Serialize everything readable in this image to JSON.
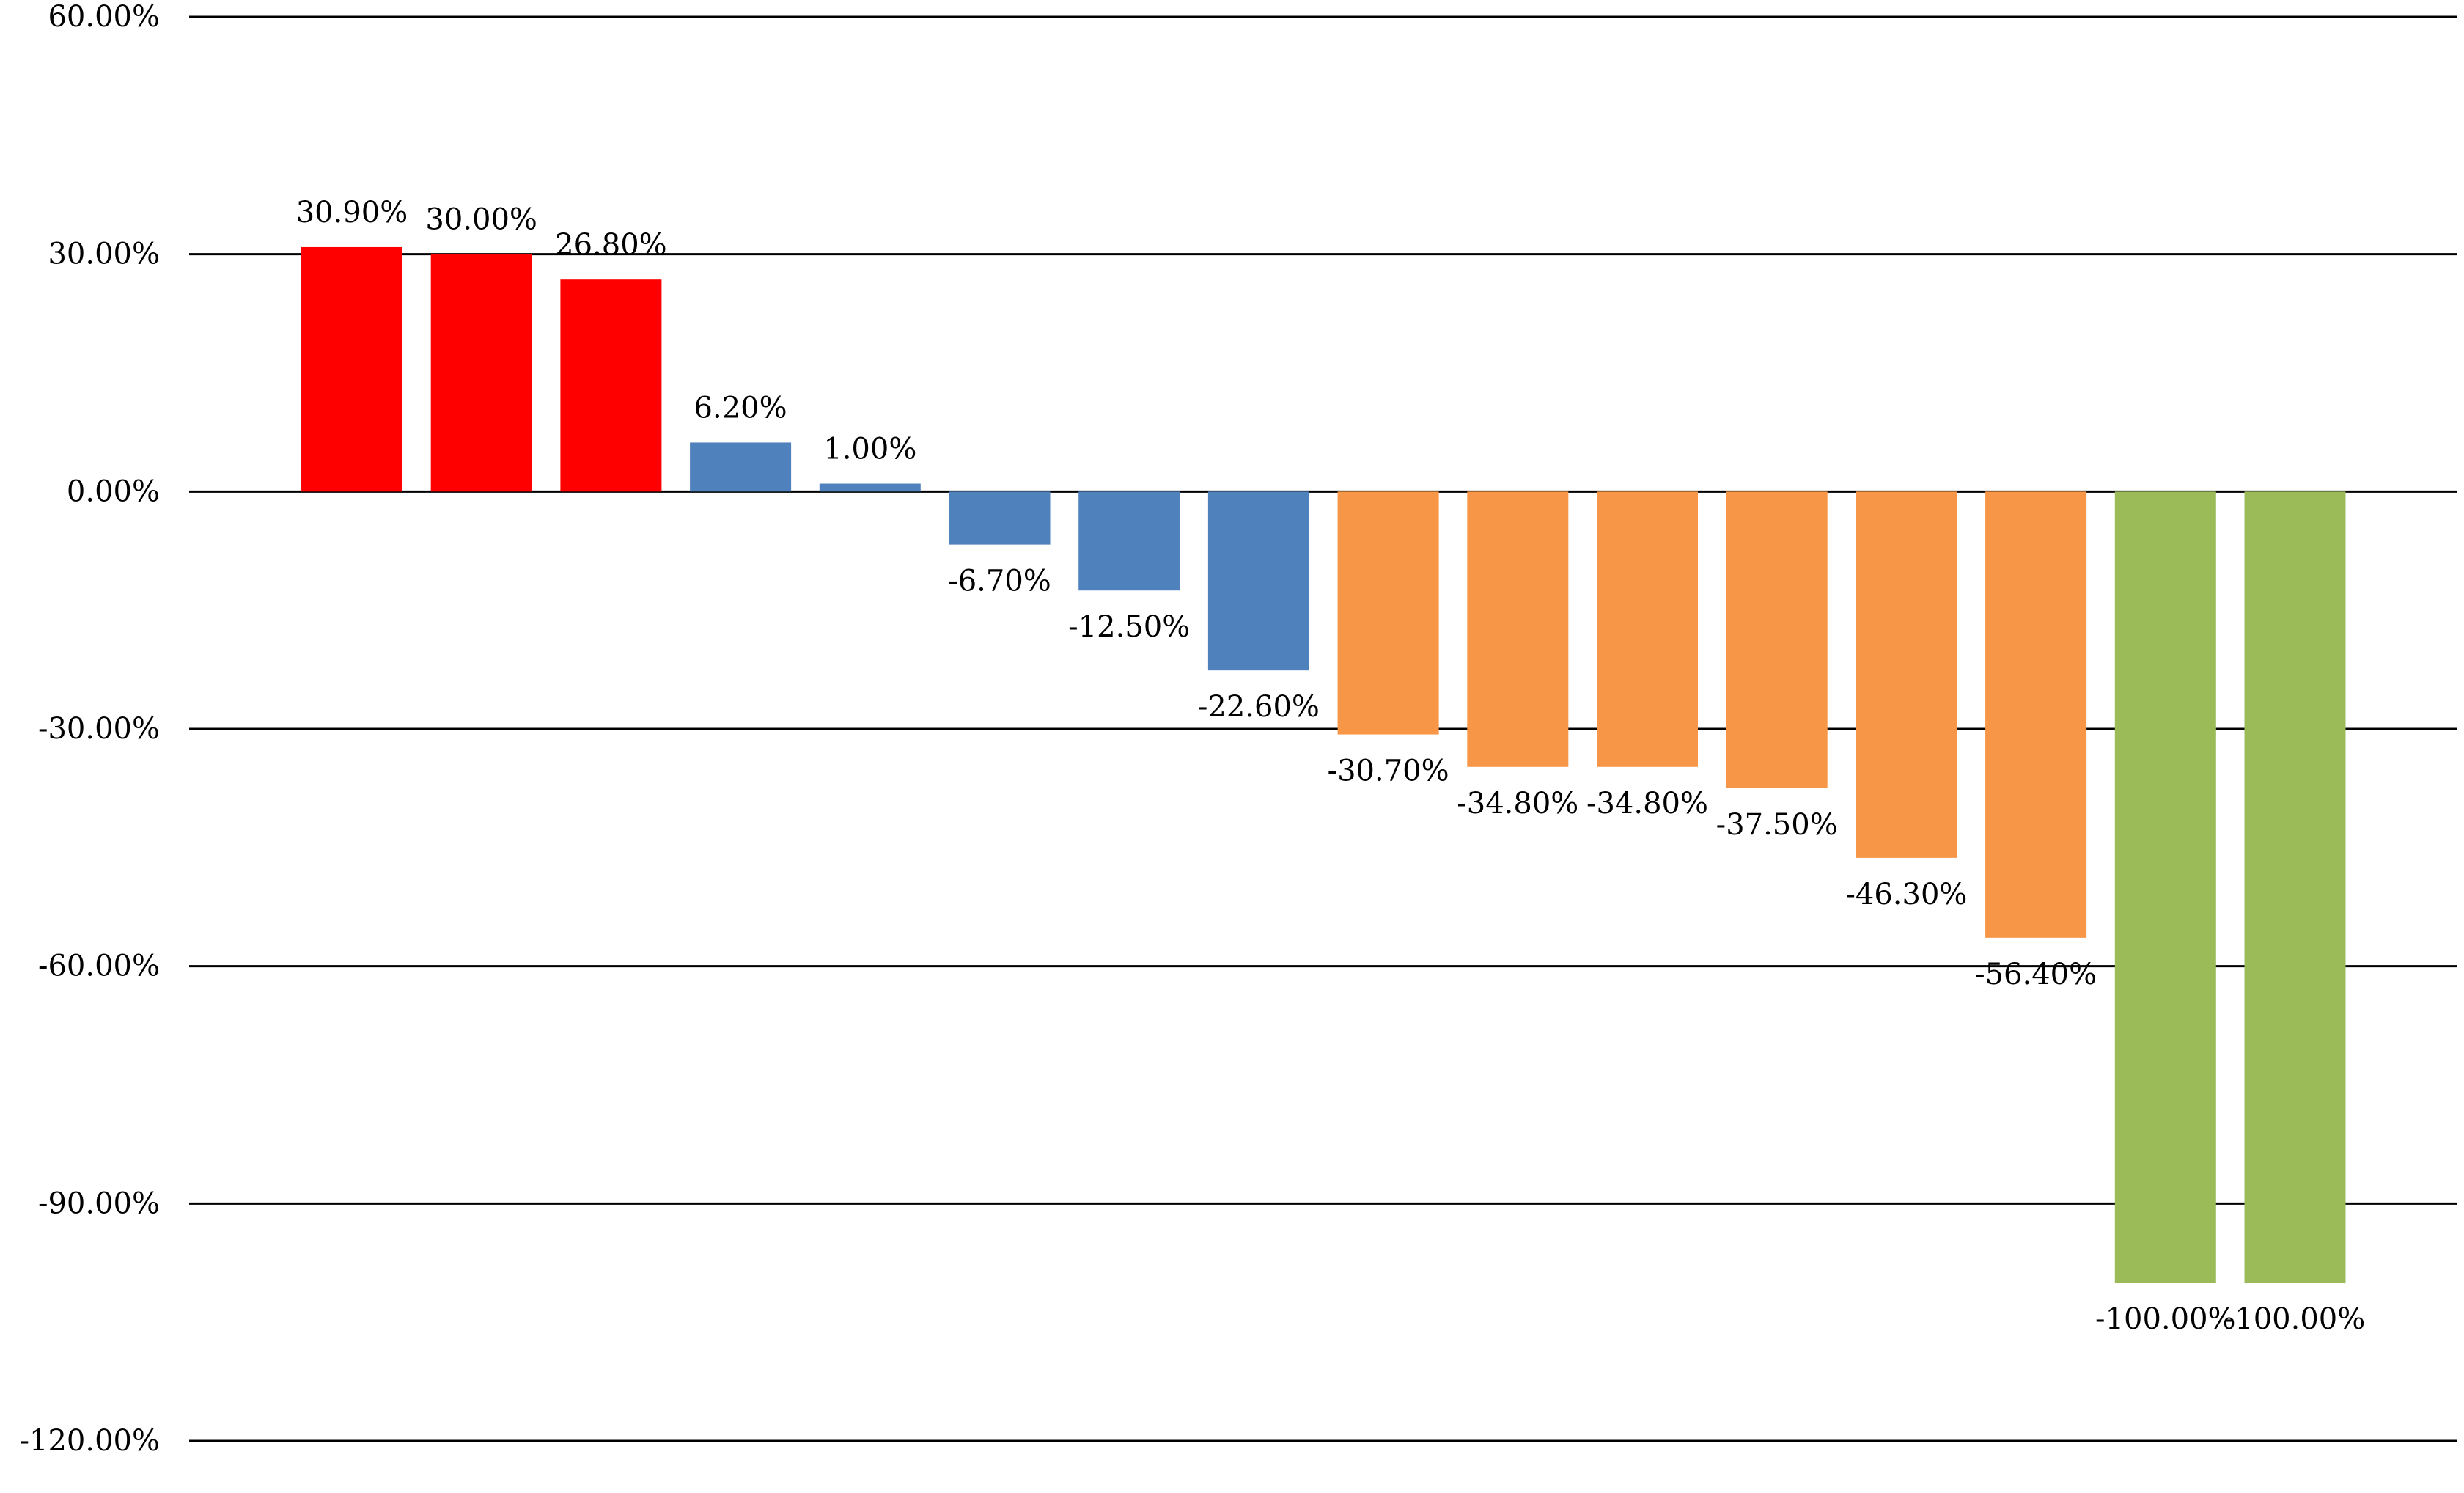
{
  "chart_data": {
    "type": "bar",
    "title": "",
    "xlabel": "",
    "ylabel": "",
    "ylim": [
      -120,
      60
    ],
    "grid": true,
    "y_ticks": [
      {
        "value": 60,
        "label": "60.00%"
      },
      {
        "value": 30,
        "label": "30.00%"
      },
      {
        "value": 0,
        "label": "0.00%"
      },
      {
        "value": -30,
        "label": "-30.00%"
      },
      {
        "value": -60,
        "label": "-60.00%"
      },
      {
        "value": -90,
        "label": "-90.00%"
      },
      {
        "value": -120,
        "label": "-120.00%"
      }
    ],
    "values": [
      30.9,
      30.0,
      26.8,
      6.2,
      1.0,
      -6.7,
      -12.5,
      -22.6,
      -30.7,
      -34.8,
      -34.8,
      -37.5,
      -46.3,
      -56.4,
      -100.0,
      -100.0
    ],
    "data_labels": [
      "30.90%",
      "30.00%",
      "26.80%",
      "6.20%",
      "1.00%",
      "-6.70%",
      "-12.50%",
      "-22.60%",
      "-30.70%",
      "-34.80%",
      "-34.80%",
      "-37.50%",
      "-46.30%",
      "-56.40%",
      "-100.00%",
      "-100.00%"
    ],
    "bar_colors": [
      "#ff0000",
      "#ff0000",
      "#ff0000",
      "#4f81bd",
      "#4f81bd",
      "#4f81bd",
      "#4f81bd",
      "#4f81bd",
      "#f79646",
      "#f79646",
      "#f79646",
      "#f79646",
      "#f79646",
      "#f79646",
      "#9bbb59",
      "#9bbb59"
    ],
    "gridline_color": "#000000"
  }
}
